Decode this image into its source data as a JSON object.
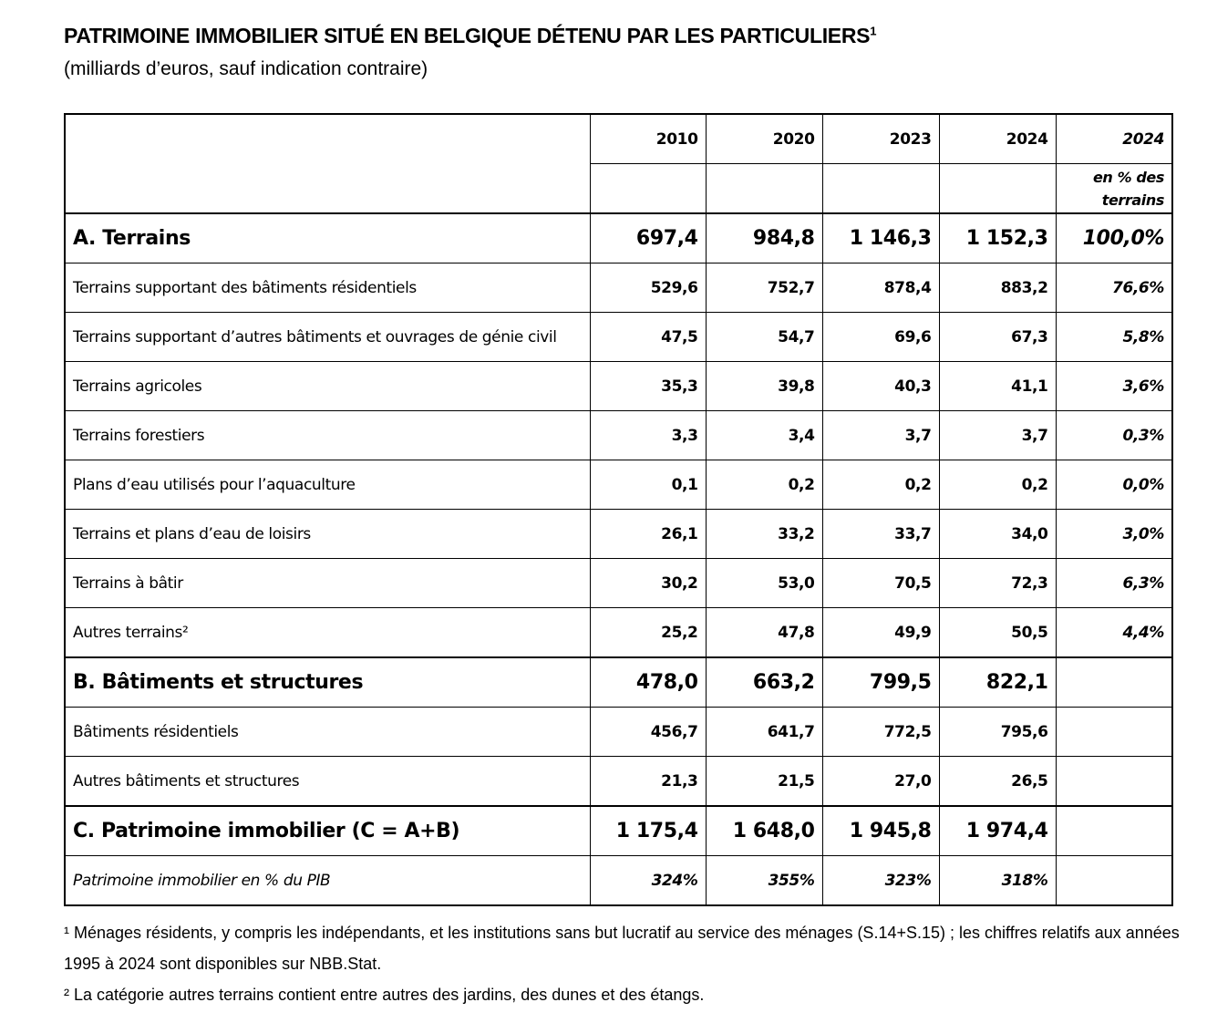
{
  "title": "PATRIMOINE IMMOBILIER SITUÉ EN BELGIQUE DÉTENU PAR LES PARTICULIERS",
  "title_sup": "1",
  "subtitle": "(milliards d’euros, sauf indication contraire)",
  "columns": [
    "2010",
    "2020",
    "2023",
    "2024",
    "2024"
  ],
  "pct_header": "en % des terrains",
  "rows": [
    {
      "label": "A. Terrains",
      "values": [
        "697,4",
        "984,8",
        "1 146,3",
        "1 152,3"
      ],
      "pct": "100,0%",
      "major": true
    },
    {
      "label": "Terrains supportant des bâtiments résidentiels",
      "values": [
        "529,6",
        "752,7",
        "878,4",
        "883,2"
      ],
      "pct": "76,6%"
    },
    {
      "label": "Terrains supportant d’autres bâtiments et ouvrages de génie civil",
      "values": [
        "47,5",
        "54,7",
        "69,6",
        "67,3"
      ],
      "pct": "5,8%"
    },
    {
      "label": "Terrains agricoles",
      "values": [
        "35,3",
        "39,8",
        "40,3",
        "41,1"
      ],
      "pct": "3,6%"
    },
    {
      "label": "Terrains forestiers",
      "values": [
        "3,3",
        "3,4",
        "3,7",
        "3,7"
      ],
      "pct": "0,3%"
    },
    {
      "label": "Plans d’eau utilisés pour l’aquaculture",
      "values": [
        "0,1",
        "0,2",
        "0,2",
        "0,2"
      ],
      "pct": "0,0%"
    },
    {
      "label": "Terrains et plans d’eau de loisirs",
      "values": [
        "26,1",
        "33,2",
        "33,7",
        "34,0"
      ],
      "pct": "3,0%"
    },
    {
      "label": "Terrains à bâtir",
      "values": [
        "30,2",
        "53,0",
        "70,5",
        "72,3"
      ],
      "pct": "6,3%"
    },
    {
      "label": "Autres terrains²",
      "values": [
        "25,2",
        "47,8",
        "49,9",
        "50,5"
      ],
      "pct": "4,4%"
    },
    {
      "label": "B. Bâtiments et structures",
      "values": [
        "478,0",
        "663,2",
        "799,5",
        "822,1"
      ],
      "pct": "",
      "major": true
    },
    {
      "label": "Bâtiments résidentiels",
      "values": [
        "456,7",
        "641,7",
        "772,5",
        "795,6"
      ],
      "pct": ""
    },
    {
      "label": "Autres bâtiments et structures",
      "values": [
        "21,3",
        "21,5",
        "27,0",
        "26,5"
      ],
      "pct": ""
    },
    {
      "label": "C. Patrimoine immobilier (C = A+B)",
      "values": [
        "1 175,4",
        "1 648,0",
        "1 945,8",
        "1 974,4"
      ],
      "pct": "",
      "major": true
    },
    {
      "label": "Patrimoine immobilier en % du PIB",
      "values": [
        "324%",
        "355%",
        "323%",
        "318%"
      ],
      "pct": "",
      "gdp": true
    }
  ],
  "notes": [
    "¹ Ménages résidents, y compris les indépendants, et les institutions sans but lucratif au service des ménages (S.14+S.15) ; les chiffres relatifs aux années 1995 à 2024 sont disponibles sur NBB.Stat.",
    "² La catégorie autres terrains contient entre autres des jardins, des dunes et des étangs."
  ]
}
